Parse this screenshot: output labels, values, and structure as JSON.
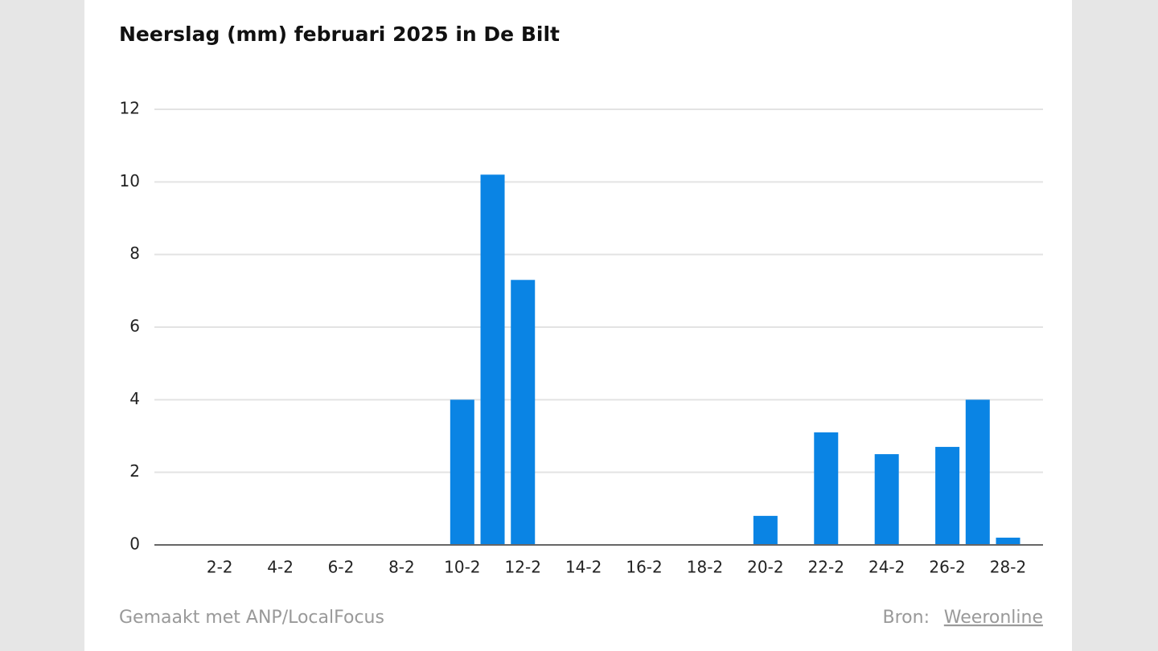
{
  "chart_data": {
    "type": "bar",
    "title": "Neerslag (mm) februari 2025 in De Bilt",
    "categories": [
      null,
      "2-2",
      null,
      "4-2",
      null,
      "6-2",
      null,
      "8-2",
      null,
      "10-2",
      null,
      "12-2",
      null,
      "14-2",
      null,
      "16-2",
      null,
      "18-2",
      null,
      "20-2",
      null,
      "22-2",
      null,
      "24-2",
      null,
      "26-2",
      null,
      "28-2"
    ],
    "values": [
      0,
      0,
      0,
      0,
      0,
      0,
      0,
      0,
      0,
      4.0,
      10.2,
      7.3,
      0,
      0,
      0,
      0,
      0,
      0,
      0,
      0.8,
      0,
      3.1,
      0,
      2.5,
      0,
      2.7,
      4.0,
      0.2
    ],
    "color": "#0a84e4",
    "ylim": [
      0,
      12
    ],
    "yticks": [
      0,
      2,
      4,
      6,
      8,
      10,
      12
    ],
    "grid": true
  },
  "footer": {
    "credit": "Gemaakt met ANP/LocalFocus",
    "source_label": "Bron:",
    "source": "Weeronline"
  }
}
